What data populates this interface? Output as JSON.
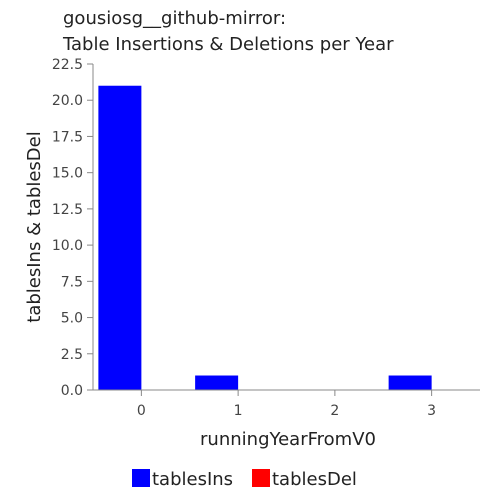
{
  "chart_data": {
    "type": "bar",
    "title_lines": [
      "gousiosg__github-mirror:",
      "Table Insertions & Deletions per Year"
    ],
    "xlabel": "runningYearFromV0",
    "ylabel": "tablesIns & tablesDel",
    "categories": [
      "0",
      "1",
      "2",
      "3"
    ],
    "ylim": [
      0,
      22.5
    ],
    "yticks": [
      "0.0",
      "2.5",
      "5.0",
      "7.5",
      "10.0",
      "12.5",
      "15.0",
      "17.5",
      "20.0",
      "22.5"
    ],
    "series": [
      {
        "name": "tablesIns",
        "color": "#0000ff",
        "values": [
          21,
          1,
          0,
          1
        ]
      },
      {
        "name": "tablesDel",
        "color": "#ff0000",
        "values": [
          0,
          0,
          0,
          0
        ]
      }
    ],
    "grid": false,
    "legend_position": "bottom"
  }
}
